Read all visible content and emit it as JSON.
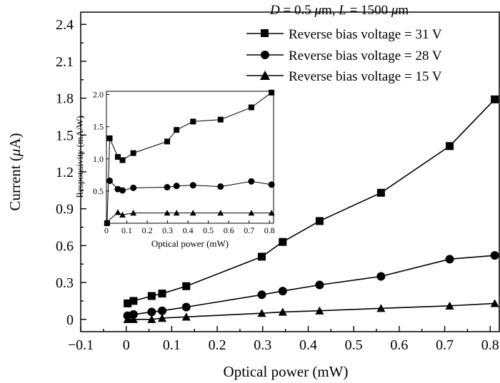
{
  "annotation": {
    "D_label": "D",
    "D_text": " = 0.5 ",
    "mu": "μ",
    "m_unit_1": "m, ",
    "L_label": "L",
    "L_text": " = 1500 ",
    "m_unit_2": "m"
  },
  "chart_data": [
    {
      "type": "line",
      "xlabel": "Optical power (mW)",
      "ylabel_prefix": "Current (",
      "ylabel_mu": "μ",
      "ylabel_suffix": "A)",
      "xlim": [
        -0.1,
        0.82
      ],
      "ylim": [
        -0.1,
        2.5
      ],
      "xticks": [
        "−0.1",
        "0",
        "0.1",
        "0.2",
        "0.3",
        "0.4",
        "0.5",
        "0.6",
        "0.7",
        "0.8"
      ],
      "yticks": [
        "0",
        "0.3",
        "0.6",
        "0.9",
        "1.2",
        "1.5",
        "1.8",
        "2.1",
        "2.4"
      ],
      "legend_position": "top-right",
      "series": [
        {
          "name": "Reverse bias voltage = 31 V",
          "marker": "square",
          "x": [
            0.003,
            0.016,
            0.056,
            0.079,
            0.132,
            0.298,
            0.344,
            0.425,
            0.56,
            0.711,
            0.81
          ],
          "y": [
            0.13,
            0.15,
            0.19,
            0.21,
            0.27,
            0.51,
            0.63,
            0.8,
            1.03,
            1.41,
            1.79
          ]
        },
        {
          "name": "Reverse bias voltage = 28 V",
          "marker": "circle",
          "x": [
            0.003,
            0.016,
            0.056,
            0.079,
            0.132,
            0.298,
            0.344,
            0.425,
            0.56,
            0.711,
            0.81
          ],
          "y": [
            0.03,
            0.04,
            0.06,
            0.07,
            0.1,
            0.2,
            0.23,
            0.28,
            0.35,
            0.49,
            0.52
          ]
        },
        {
          "name": "Reverse bias voltage = 15 V",
          "marker": "triangle",
          "x": [
            0.003,
            0.016,
            0.056,
            0.079,
            0.132,
            0.298,
            0.344,
            0.425,
            0.56,
            0.711,
            0.81
          ],
          "y": [
            0.0,
            0.0,
            0.0,
            0.01,
            0.02,
            0.05,
            0.06,
            0.07,
            0.09,
            0.11,
            0.13
          ]
        }
      ]
    },
    {
      "type": "line",
      "inset": true,
      "xlabel": "Optical power (mW)",
      "ylabel": "Responsivity (mA/W)",
      "xlim": [
        0,
        0.82
      ],
      "ylim": [
        0,
        2.05
      ],
      "xticks": [
        "0",
        "0.1",
        "0.2",
        "0.3",
        "0.4",
        "0.5",
        "0.6",
        "0.7",
        "0.8"
      ],
      "yticks": [
        "0.5",
        "1.0",
        "1.5",
        "2.0"
      ],
      "series": [
        {
          "marker": "square",
          "x": [
            0.003,
            0.016,
            0.056,
            0.079,
            0.132,
            0.298,
            0.344,
            0.425,
            0.56,
            0.711,
            0.81
          ],
          "y": [
            0.0,
            1.32,
            1.03,
            0.98,
            1.09,
            1.27,
            1.45,
            1.58,
            1.61,
            1.8,
            2.03
          ]
        },
        {
          "marker": "circle",
          "x": [
            0.016,
            0.056,
            0.079,
            0.132,
            0.298,
            0.344,
            0.425,
            0.56,
            0.711,
            0.81
          ],
          "y": [
            0.66,
            0.53,
            0.51,
            0.55,
            0.56,
            0.58,
            0.59,
            0.57,
            0.65,
            0.6
          ]
        },
        {
          "marker": "triangle",
          "x": [
            0.003,
            0.056,
            0.079,
            0.132,
            0.298,
            0.344,
            0.425,
            0.56,
            0.711,
            0.81
          ],
          "y": [
            0.02,
            0.17,
            0.13,
            0.16,
            0.16,
            0.16,
            0.16,
            0.16,
            0.16,
            0.16
          ]
        }
      ]
    }
  ]
}
